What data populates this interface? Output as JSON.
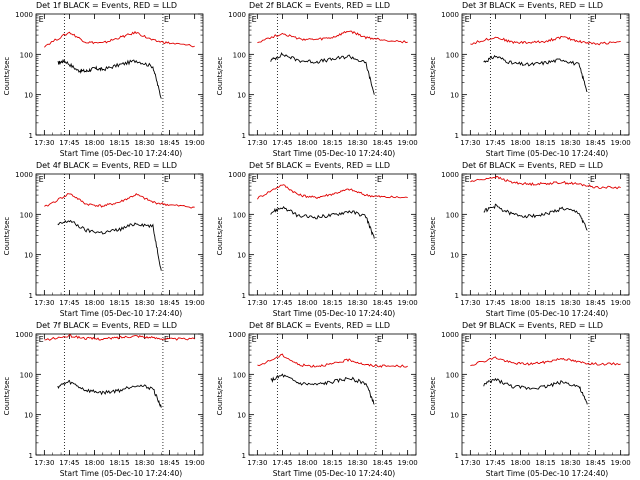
{
  "colors": {
    "events": "#000000",
    "lld": "#e00000"
  },
  "common": {
    "ylabel": "Counts/sec",
    "xlabel": "Start Time (05-Dec-10 17:24:40)",
    "xticks": [
      "17:30",
      "17:45",
      "18:00",
      "18:15",
      "18:30",
      "18:45",
      "19:00"
    ],
    "yticks": [
      "1000",
      "100",
      "10",
      "1"
    ]
  },
  "chart_data": [
    {
      "type": "line",
      "title": "Det 1f BLACK = Events, RED = LLD",
      "marker": "E",
      "yscale": "log",
      "ylim": [
        1,
        1000
      ],
      "series": [
        {
          "name": "Events",
          "x": [
            "17:38",
            "17:42",
            "17:50",
            "17:55",
            "18:00",
            "18:05",
            "18:15",
            "18:25",
            "18:35",
            "18:40"
          ],
          "values": [
            60,
            70,
            40,
            38,
            45,
            42,
            55,
            70,
            50,
            8
          ]
        },
        {
          "name": "LLD",
          "x": [
            "17:30",
            "17:45",
            "17:55",
            "18:05",
            "18:15",
            "18:25",
            "18:35",
            "18:45",
            "19:00"
          ],
          "values": [
            160,
            350,
            200,
            190,
            260,
            350,
            220,
            190,
            160
          ]
        }
      ]
    },
    {
      "type": "line",
      "title": "Det 2f BLACK = Events, RED = LLD",
      "marker": "E",
      "yscale": "log",
      "ylim": [
        1,
        1000
      ],
      "series": [
        {
          "name": "Events",
          "x": [
            "17:38",
            "17:45",
            "17:55",
            "18:05",
            "18:15",
            "18:25",
            "18:35",
            "18:40"
          ],
          "values": [
            70,
            100,
            70,
            65,
            75,
            90,
            60,
            10
          ]
        },
        {
          "name": "LLD",
          "x": [
            "17:30",
            "17:45",
            "17:55",
            "18:05",
            "18:15",
            "18:25",
            "18:35",
            "18:45",
            "19:00"
          ],
          "values": [
            200,
            330,
            240,
            230,
            260,
            380,
            260,
            230,
            200
          ]
        }
      ]
    },
    {
      "type": "line",
      "title": "Det 3f BLACK = Events, RED = LLD",
      "marker": "E",
      "yscale": "log",
      "ylim": [
        1,
        1000
      ],
      "series": [
        {
          "name": "Events",
          "x": [
            "17:38",
            "17:45",
            "17:55",
            "18:05",
            "18:15",
            "18:25",
            "18:35",
            "18:40"
          ],
          "values": [
            65,
            90,
            60,
            55,
            62,
            75,
            55,
            12
          ]
        },
        {
          "name": "LLD",
          "x": [
            "17:30",
            "17:45",
            "17:55",
            "18:05",
            "18:15",
            "18:25",
            "18:35",
            "18:45",
            "19:00"
          ],
          "values": [
            180,
            270,
            200,
            195,
            210,
            270,
            210,
            180,
            210
          ]
        }
      ]
    },
    {
      "type": "line",
      "title": "Det 4f BLACK = Events, RED = LLD",
      "marker": "E",
      "yscale": "log",
      "ylim": [
        1,
        1000
      ],
      "series": [
        {
          "name": "Events",
          "x": [
            "17:38",
            "17:45",
            "17:55",
            "18:05",
            "18:15",
            "18:25",
            "18:35",
            "18:40"
          ],
          "values": [
            55,
            70,
            40,
            35,
            42,
            60,
            50,
            4
          ]
        },
        {
          "name": "LLD",
          "x": [
            "17:30",
            "17:45",
            "17:55",
            "18:05",
            "18:15",
            "18:25",
            "18:35",
            "18:45",
            "19:00"
          ],
          "values": [
            150,
            330,
            180,
            160,
            200,
            310,
            200,
            170,
            150
          ]
        }
      ]
    },
    {
      "type": "line",
      "title": "Det 5f BLACK = Events, RED = LLD",
      "marker": "E",
      "yscale": "log",
      "ylim": [
        1,
        1000
      ],
      "series": [
        {
          "name": "Events",
          "x": [
            "17:38",
            "17:45",
            "17:55",
            "18:05",
            "18:15",
            "18:25",
            "18:35",
            "18:40"
          ],
          "values": [
            110,
            150,
            90,
            85,
            95,
            120,
            90,
            25
          ]
        },
        {
          "name": "LLD",
          "x": [
            "17:30",
            "17:45",
            "17:55",
            "18:05",
            "18:15",
            "18:25",
            "18:35",
            "18:45",
            "19:00"
          ],
          "values": [
            250,
            550,
            300,
            260,
            320,
            420,
            300,
            270,
            260
          ]
        }
      ]
    },
    {
      "type": "line",
      "title": "Det 6f BLACK = Events, RED = LLD",
      "marker": "E",
      "yscale": "log",
      "ylim": [
        1,
        1000
      ],
      "series": [
        {
          "name": "Events",
          "x": [
            "17:38",
            "17:45",
            "17:55",
            "18:05",
            "18:15",
            "18:25",
            "18:35",
            "18:40"
          ],
          "values": [
            120,
            160,
            100,
            90,
            100,
            140,
            110,
            40
          ]
        },
        {
          "name": "LLD",
          "x": [
            "17:30",
            "17:45",
            "17:55",
            "18:05",
            "18:15",
            "18:25",
            "18:35",
            "18:45",
            "19:00"
          ],
          "values": [
            650,
            850,
            620,
            560,
            580,
            620,
            560,
            470,
            460
          ]
        }
      ]
    },
    {
      "type": "line",
      "title": "Det 7f BLACK = Events, RED = LLD",
      "marker": "E",
      "yscale": "log",
      "ylim": [
        1,
        1000
      ],
      "series": [
        {
          "name": "Events",
          "x": [
            "17:38",
            "17:45",
            "17:55",
            "18:05",
            "18:15",
            "18:25",
            "18:35",
            "18:40"
          ],
          "values": [
            50,
            65,
            40,
            35,
            40,
            55,
            45,
            15
          ]
        },
        {
          "name": "LLD",
          "x": [
            "17:30",
            "17:45",
            "17:55",
            "18:05",
            "18:15",
            "18:25",
            "18:35",
            "18:45",
            "19:00"
          ],
          "values": [
            700,
            900,
            780,
            750,
            820,
            900,
            800,
            750,
            750
          ]
        }
      ]
    },
    {
      "type": "line",
      "title": "Det 8f BLACK = Events, RED = LLD",
      "marker": "E",
      "yscale": "log",
      "ylim": [
        1,
        1000
      ],
      "series": [
        {
          "name": "Events",
          "x": [
            "17:38",
            "17:45",
            "17:55",
            "18:05",
            "18:15",
            "18:25",
            "18:35",
            "18:40"
          ],
          "values": [
            70,
            95,
            60,
            55,
            65,
            80,
            60,
            18
          ]
        },
        {
          "name": "LLD",
          "x": [
            "17:30",
            "17:45",
            "17:55",
            "18:05",
            "18:15",
            "18:25",
            "18:35",
            "18:45",
            "19:00"
          ],
          "values": [
            160,
            300,
            170,
            160,
            180,
            230,
            170,
            160,
            160
          ]
        }
      ]
    },
    {
      "type": "line",
      "title": "Det 9f BLACK = Events, RED = LLD",
      "marker": "E",
      "yscale": "log",
      "ylim": [
        1,
        1000
      ],
      "series": [
        {
          "name": "Events",
          "x": [
            "17:38",
            "17:45",
            "17:55",
            "18:05",
            "18:15",
            "18:25",
            "18:35",
            "18:40"
          ],
          "values": [
            55,
            75,
            50,
            45,
            50,
            65,
            50,
            18
          ]
        },
        {
          "name": "LLD",
          "x": [
            "17:30",
            "17:45",
            "17:55",
            "18:05",
            "18:15",
            "18:25",
            "18:35",
            "18:45",
            "19:00"
          ],
          "values": [
            170,
            260,
            190,
            180,
            200,
            250,
            200,
            180,
            180
          ]
        }
      ]
    }
  ]
}
